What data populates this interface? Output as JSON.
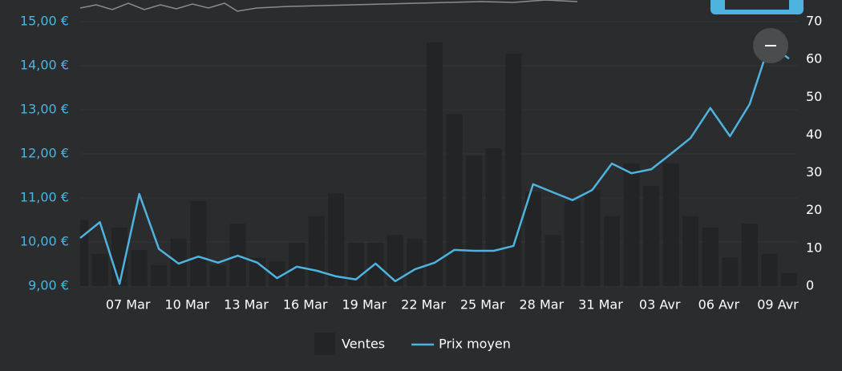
{
  "chart_data": {
    "type": "combo",
    "categories": [
      null,
      null,
      null,
      "07 Mar",
      null,
      null,
      "10 Mar",
      null,
      null,
      "13 Mar",
      null,
      null,
      "16 Mar",
      null,
      null,
      "19 Mar",
      null,
      null,
      "22 Mar",
      null,
      null,
      "25 Mar",
      null,
      null,
      "28 Mar",
      null,
      null,
      "31 Mar",
      null,
      null,
      "03 Avr",
      null,
      null,
      "06 Avr",
      null,
      null,
      "09 Avr"
    ],
    "series": [
      {
        "name": "Ventes",
        "type": "bar",
        "axis": "y2",
        "color": "#222426",
        "values": [
          17.5,
          8.5,
          15.5,
          9.5,
          5.5,
          12.5,
          22.5,
          5.5,
          16.5,
          7.5,
          6.5,
          11.5,
          18.5,
          24.5,
          11.5,
          11.5,
          13.5,
          12.5,
          64.5,
          45.5,
          34.5,
          36.5,
          61.5,
          25,
          13.5,
          22.5,
          25.5,
          18.5,
          32.5,
          26.5,
          32.5,
          18.5,
          15.5,
          7.5,
          16.5,
          8.5,
          3.5
        ]
      },
      {
        "name": "Prix moyen",
        "type": "line",
        "axis": "y",
        "color": "#4fb3e0",
        "values": [
          10.09,
          10.45,
          9.05,
          11.09,
          9.84,
          9.51,
          9.67,
          9.53,
          9.69,
          9.53,
          9.18,
          9.44,
          9.35,
          9.22,
          9.15,
          9.51,
          9.11,
          9.38,
          9.53,
          9.82,
          9.8,
          9.8,
          9.91,
          11.31,
          11.13,
          10.95,
          11.18,
          11.78,
          11.56,
          11.65,
          12.0,
          12.36,
          13.04,
          12.4,
          13.13,
          14.49,
          14.16
        ]
      }
    ],
    "ylim": [
      9,
      15
    ],
    "yticks": [
      {
        "value": 9,
        "label": "9,00 €"
      },
      {
        "value": 10,
        "label": "10,00 €"
      },
      {
        "value": 11,
        "label": "11,00 €"
      },
      {
        "value": 12,
        "label": "12,00 €"
      },
      {
        "value": 13,
        "label": "13,00 €"
      },
      {
        "value": 14,
        "label": "14,00 €"
      },
      {
        "value": 15,
        "label": "15,00 €"
      }
    ],
    "y2lim": [
      0,
      70
    ],
    "y2ticks": [
      0,
      10,
      20,
      30,
      40,
      50,
      60,
      70
    ],
    "grid": true
  }
}
